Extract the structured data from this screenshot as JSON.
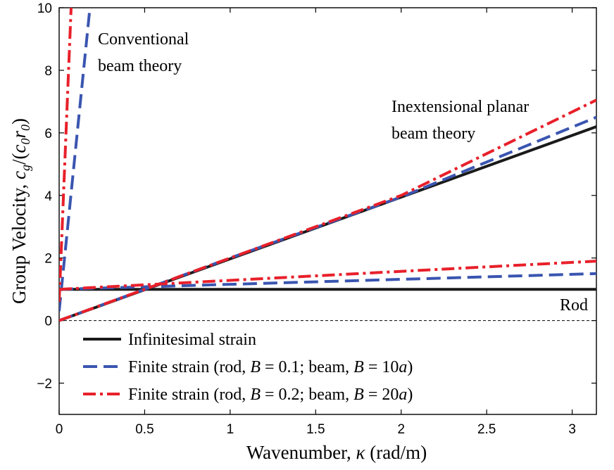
{
  "chart_data": {
    "type": "line",
    "xlabel": "Wavenumber, κ (rad/m)",
    "ylabel": "Group Velocity, c_g/(c_0 r_0)",
    "xlim": [
      0,
      3.14159
    ],
    "ylim": [
      -3,
      10
    ],
    "xticks": [
      0,
      0.5,
      1,
      1.5,
      2,
      2.5,
      3
    ],
    "xtick_labels": [
      "0",
      "0.5",
      "1",
      "1.5",
      "2",
      "2.5",
      "3"
    ],
    "yticks": [
      -2,
      0,
      2,
      4,
      6,
      8,
      10
    ],
    "ytick_labels": [
      "−2",
      "0",
      "2",
      "4",
      "6",
      "8",
      "10"
    ],
    "grid": false,
    "zero_line": "dashed",
    "legend_position": "lower-left",
    "annotations": {
      "conventional_line1": "Conventional",
      "conventional_line2": "beam theory",
      "inextensional_line1": "Inextensional planar",
      "inextensional_line2": "beam theory",
      "rod": "Rod"
    },
    "legend": [
      {
        "key": "infinitesimal",
        "label": "Infinitesimal strain",
        "color": "#1a1a1a",
        "style": "solid"
      },
      {
        "key": "finite01",
        "label": "Finite strain (rod, B = 0.1; beam, B = 10a)",
        "color": "#3a55b0",
        "style": "dashed"
      },
      {
        "key": "finite02",
        "label": "Finite strain (rod, B = 0.2; beam, B = 20a)",
        "color": "#e8202a",
        "style": "dashdot"
      }
    ],
    "series": [
      {
        "group": "conventional",
        "key": "finite01",
        "x": [
          0,
          0.18
        ],
        "y": [
          0.3,
          10
        ]
      },
      {
        "group": "conventional",
        "key": "finite02",
        "x": [
          0,
          0.07
        ],
        "y": [
          0.6,
          10
        ]
      },
      {
        "group": "inextensional",
        "key": "infinitesimal",
        "x": [
          0,
          3.14159
        ],
        "y": [
          0,
          6.2
        ]
      },
      {
        "group": "inextensional",
        "key": "finite01",
        "x": [
          0,
          0.5,
          1,
          2,
          3.14159
        ],
        "y": [
          0,
          1.0,
          2.0,
          3.95,
          6.5
        ]
      },
      {
        "group": "inextensional",
        "key": "finite02",
        "x": [
          0,
          0.5,
          1,
          2,
          3.14159
        ],
        "y": [
          0,
          1.0,
          2.0,
          4.0,
          7.05
        ]
      },
      {
        "group": "rod",
        "key": "infinitesimal",
        "x": [
          0,
          3.14159
        ],
        "y": [
          1.0,
          1.0
        ]
      },
      {
        "group": "rod",
        "key": "finite01",
        "x": [
          0,
          3.14159
        ],
        "y": [
          1.0,
          1.5
        ]
      },
      {
        "group": "rod",
        "key": "finite02",
        "x": [
          0,
          3.14159
        ],
        "y": [
          1.0,
          1.9
        ]
      }
    ]
  }
}
